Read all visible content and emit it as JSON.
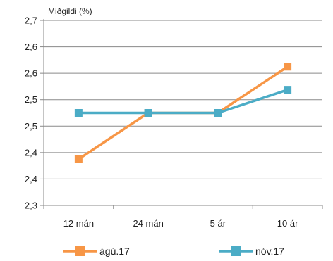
{
  "chart_data": {
    "type": "line",
    "title": "",
    "ylabel": "Miðgildi (%)",
    "xlabel": "",
    "categories": [
      "12 mán",
      "24 mán",
      "5 ár",
      "10 ár"
    ],
    "ytick_labels": [
      "2,3",
      "2,4",
      "2,4",
      "2,5",
      "2,5",
      "2,6",
      "2,6",
      "2,7"
    ],
    "ylim": [
      2.3,
      2.7
    ],
    "grid": true,
    "legend_position": "bottom",
    "series": [
      {
        "name": "ágú.17",
        "color": "#f79646",
        "values": [
          2.4,
          2.5,
          2.5,
          2.6
        ]
      },
      {
        "name": "nóv.17",
        "color": "#4bacc6",
        "values": [
          2.5,
          2.5,
          2.5,
          2.55
        ]
      }
    ]
  }
}
